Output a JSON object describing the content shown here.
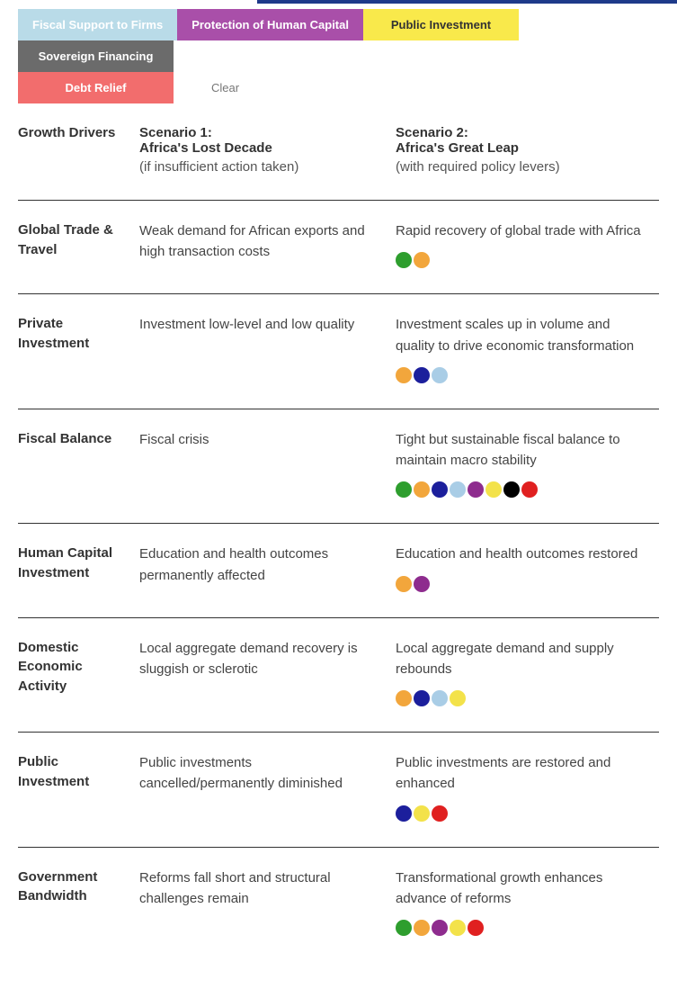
{
  "colors": {
    "fiscal_support": "#b9dbe8",
    "human_capital_tab": "#a94fa9",
    "public_investment_tab": "#f9e94b",
    "sovereign_financing": "#6b6b6b",
    "debt_relief_tab": "#f26d6d",
    "text_dark": "#333333",
    "text_muted": "#666666",
    "divider": "#333333"
  },
  "dot_palette": {
    "green": "#2e9e2e",
    "orange": "#f2a63c",
    "navy": "#1c1f9c",
    "skyblue": "#a9cde6",
    "purple": "#8e2c8e",
    "yellow": "#f3e24a",
    "black": "#000000",
    "red": "#e02020"
  },
  "tabs": [
    {
      "id": "fiscal-support",
      "label": "Fiscal Support to Firms",
      "bg": "fiscal_support",
      "fg": "#ffffff"
    },
    {
      "id": "human-capital",
      "label": "Protection of Human Capital",
      "bg": "human_capital_tab",
      "fg": "#ffffff"
    },
    {
      "id": "public-investment",
      "label": "Public Investment",
      "bg": "public_investment_tab",
      "fg": "#333333"
    },
    {
      "id": "sovereign-financing",
      "label": "Sovereign Financing",
      "bg": "sovereign_financing",
      "fg": "#ffffff"
    },
    {
      "id": "debt-relief",
      "label": "Debt Relief",
      "bg": "debt_relief_tab",
      "fg": "#ffffff"
    }
  ],
  "clear_label": "Clear",
  "header": {
    "col0": "Growth Drivers",
    "col1_title": "Scenario 1:",
    "col1_sub1": "Africa's Lost Decade",
    "col1_sub2": "(if insufficient action taken)",
    "col2_title": "Scenario 2:",
    "col2_sub1": "Africa's Great Leap",
    "col2_sub2": "(with required policy levers)"
  },
  "rows": [
    {
      "id": "global-trade",
      "label": "Global Trade & Travel",
      "s1": "Weak demand for African exports and high transaction costs",
      "s2": "Rapid recovery of global trade with Africa",
      "dots": [
        "green",
        "orange"
      ]
    },
    {
      "id": "private-investment",
      "label": "Private Investment",
      "s1": "Investment low-level and low quality",
      "s2": "Investment scales up in volume and quality to drive economic transformation",
      "dots": [
        "orange",
        "navy",
        "skyblue"
      ]
    },
    {
      "id": "fiscal-balance",
      "label": "Fiscal Balance",
      "s1": "Fiscal crisis",
      "s2": "Tight but sustainable fiscal balance to maintain macro stability",
      "dots": [
        "green",
        "orange",
        "navy",
        "skyblue",
        "purple",
        "yellow",
        "black",
        "red"
      ]
    },
    {
      "id": "human-capital-investment",
      "label": "Human Capital Investment",
      "s1": "Education and health outcomes permanently affected",
      "s2": "Education and health outcomes restored",
      "dots": [
        "orange",
        "purple"
      ]
    },
    {
      "id": "domestic-economic-activity",
      "label": "Domestic Economic Activity",
      "s1": "Local aggregate demand recovery is sluggish or sclerotic",
      "s2": "Local aggregate demand and supply rebounds",
      "dots": [
        "orange",
        "navy",
        "skyblue",
        "yellow"
      ]
    },
    {
      "id": "public-investment-row",
      "label": "Public Investment",
      "s1": "Public investments cancelled/permanently diminished",
      "s2": "Public investments are restored and enhanced",
      "dots": [
        "navy",
        "yellow",
        "red"
      ]
    },
    {
      "id": "government-bandwidth",
      "label": "Government Bandwidth",
      "s1": "Reforms fall short and structural challenges remain",
      "s2": "Transformational growth enhances advance of reforms",
      "dots": [
        "green",
        "orange",
        "purple",
        "yellow",
        "red"
      ]
    }
  ]
}
